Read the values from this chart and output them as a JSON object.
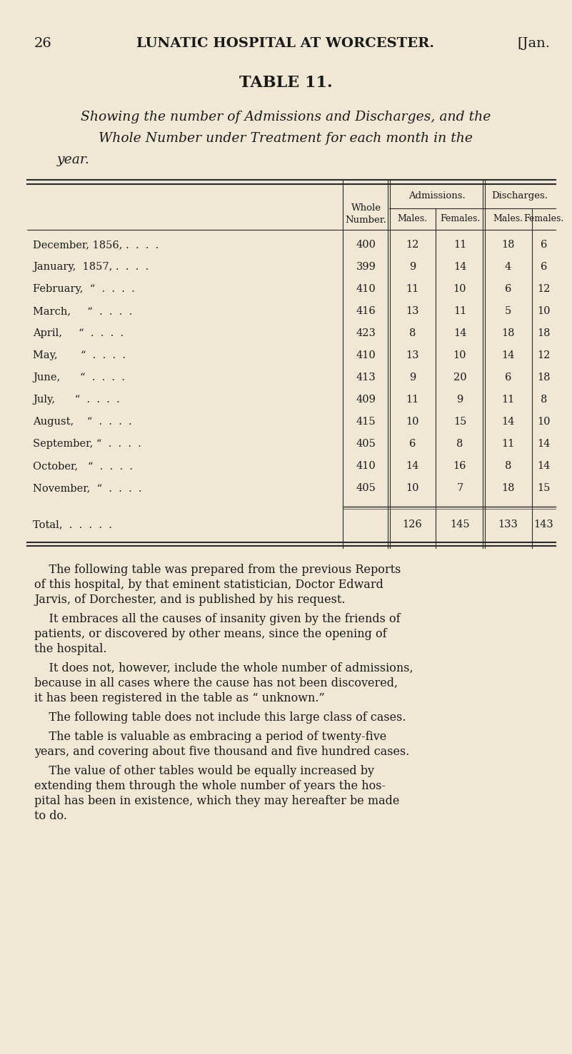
{
  "bg_color": "#f0e8d5",
  "page_number": "26",
  "header_left": "LUNATIC HOSPITAL AT WORCESTER.",
  "header_right": "[Jan.",
  "table_title": "TABLE 11.",
  "subtitle_line1": "Showing the number of Admissions and Discharges, and the",
  "subtitle_line2": "Whole Number under Treatment for each month in the",
  "subtitle_line3": "year.",
  "col_headers": [
    "Whole\nNumber.",
    "Admissions.\nMales.",
    "Admissions.\nFemales.",
    "Discharges.\nMales.",
    "Discharges.\nFemales."
  ],
  "col_header_group1": "Admissions.",
  "col_header_group2": "Discharges.",
  "col_header_sub": [
    "Males.",
    "Females.",
    "Males.",
    "Females."
  ],
  "rows": [
    [
      "December, 1856, .  .  .  .",
      400,
      12,
      11,
      18,
      6
    ],
    [
      "January,  1857, .  .  .  .",
      399,
      9,
      14,
      4,
      6
    ],
    [
      "February,  “  .  .  .  .",
      410,
      11,
      10,
      6,
      12
    ],
    [
      "March,     “  .  .  .  .",
      416,
      13,
      11,
      5,
      10
    ],
    [
      "April,     “  .  .  .  .",
      423,
      8,
      14,
      18,
      18
    ],
    [
      "May,       “  .  .  .  .",
      410,
      13,
      10,
      14,
      12
    ],
    [
      "June,      “  .  .  .  .",
      413,
      9,
      20,
      6,
      18
    ],
    [
      "July,      “  .  .  .  .",
      409,
      11,
      9,
      11,
      8
    ],
    [
      "August,    “  .  .  .  .",
      415,
      10,
      15,
      14,
      10
    ],
    [
      "September, “  .  .  .  .",
      405,
      6,
      8,
      11,
      14
    ],
    [
      "October,   “  .  .  .  .",
      410,
      14,
      16,
      8,
      14
    ],
    [
      "November,  “  .  .  .  .",
      405,
      10,
      7,
      18,
      15
    ]
  ],
  "totals": [
    "Total, .  .  .  .  .",
    "",
    126,
    145,
    133,
    143
  ],
  "body_paragraphs": [
    "    The following table was prepared from the previous Reports\nof this hospital, by that eminent statistician, Doctor Edward\nJarvis, of Dorchester, and is published by his request.",
    "    It embraces all the causes of insanity given by the friends of\npatients, or discovered by other means, since the opening of\nthe hospital.",
    "    It does not, however, include the whole number of admissions,\nbecause in all cases where the cause has not been discovered,\nit has been registered in the table as “ unknown.”",
    "    The following table does not include this large class of cases.",
    "    The table is valuable as embracing a period of twenty-five\nyears, and covering about five thousand and five hundred cases.",
    "    The value of other tables would be equally increased by\nextending them through the whole number of years the hos-\npital has been in existence, which they may hereafter be made\nto do."
  ]
}
